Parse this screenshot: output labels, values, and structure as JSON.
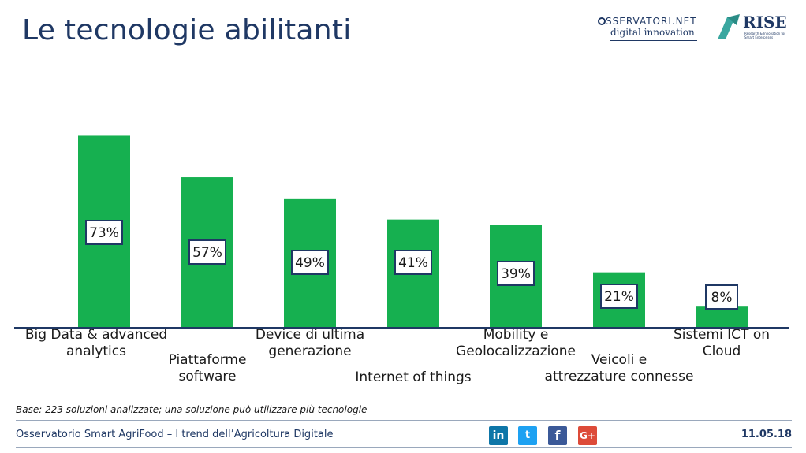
{
  "header": {
    "title": "Le tecnologie abilitanti",
    "logo_osservatori_line1": "SSERVATORI.NET",
    "logo_osservatori_line2": "digital innovation",
    "logo_rise": "RISE",
    "logo_rise_sub": "Research & Innovation for Smart Enterprises"
  },
  "chart_data": {
    "type": "bar",
    "categories": [
      [
        "Big Data & advanced",
        "analytics"
      ],
      [
        "Piattaforme",
        "software"
      ],
      [
        "Device di ultima",
        "generazione"
      ],
      [
        "Internet of things"
      ],
      [
        "Mobility e",
        "Geolocalizzazione"
      ],
      [
        "Veicoli e",
        "attrezzature connesse"
      ],
      [
        "Sistemi ICT on",
        "Cloud"
      ]
    ],
    "values": [
      73,
      57,
      49,
      41,
      39,
      21,
      8
    ],
    "value_labels": [
      "73%",
      "57%",
      "49%",
      "41%",
      "39%",
      "21%",
      "8%"
    ],
    "ylim": [
      0,
      100
    ],
    "bar_color": "#16b050",
    "axis_color": "#1f3864",
    "title": "",
    "xlabel": "",
    "ylabel": ""
  },
  "note": "Base: 223 soluzioni analizzate; una soluzione può utilizzare più tecnologie",
  "footer": {
    "left": "Osservatorio Smart AgriFood – I trend dell’Agricoltura Digitale",
    "date": "11.05.18",
    "social": [
      "in",
      "t",
      "f",
      "G+"
    ]
  }
}
